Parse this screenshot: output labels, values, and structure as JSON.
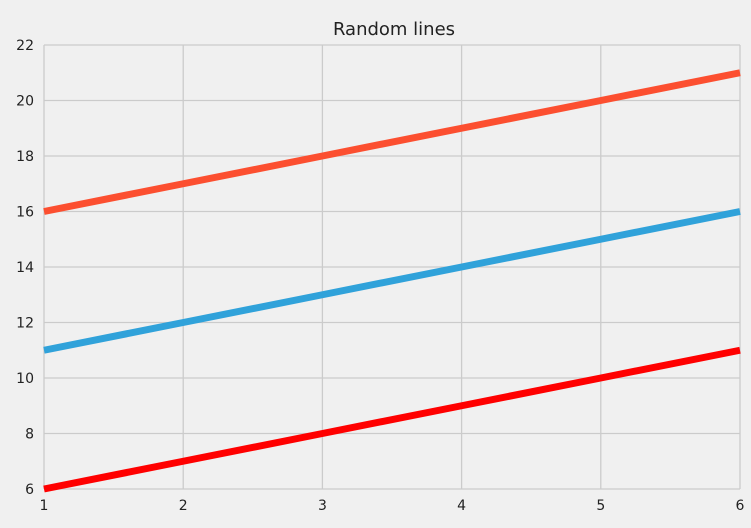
{
  "chart_data": {
    "type": "line",
    "title": "Random lines",
    "xlabel": "",
    "ylabel": "",
    "xlim": [
      1,
      6
    ],
    "ylim": [
      6,
      22
    ],
    "x_ticks": [
      1,
      2,
      3,
      4,
      5,
      6
    ],
    "y_ticks": [
      6,
      8,
      10,
      12,
      14,
      16,
      18,
      20,
      22
    ],
    "grid": true,
    "x": [
      1,
      2,
      3,
      4,
      5,
      6
    ],
    "series": [
      {
        "color": "#fc4f30",
        "values": [
          16,
          17,
          18,
          19,
          20,
          21
        ]
      },
      {
        "color": "#30a2da",
        "values": [
          11,
          12,
          13,
          14,
          15,
          16
        ]
      },
      {
        "color": "#ff0000",
        "values": [
          6,
          7,
          8,
          9,
          10,
          11
        ]
      }
    ],
    "background_color": "#f0f0f0",
    "grid_color": "#cbcbcb"
  }
}
